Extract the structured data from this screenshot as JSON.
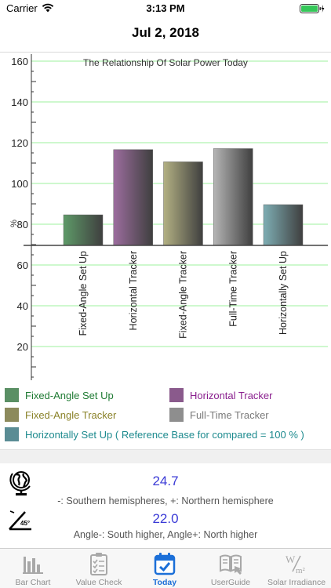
{
  "status_bar": {
    "carrier": "Carrier",
    "time": "3:13 PM"
  },
  "nav": {
    "title": "Jul 2, 2018"
  },
  "chart_data": {
    "type": "bar",
    "title": "The Relationship Of Solar Power Today",
    "ylabel": "%",
    "xlabel": "",
    "ylim": [
      0,
      160
    ],
    "yticks": [
      20,
      40,
      60,
      80,
      100,
      120,
      140,
      160
    ],
    "grid": true,
    "categories": [
      "Fixed-Angle Set Up",
      "Horizontal Tracker",
      "Fixed-Angle Tracker",
      "Full-Time Tracker",
      "Horizontally Set Up"
    ],
    "values": [
      95,
      127,
      121,
      127.5,
      100
    ],
    "colors": [
      "#5e9a68",
      "#9c6d9e",
      "#b3b183",
      "#b5b5b5",
      "#7eaeb4"
    ]
  },
  "legend": [
    {
      "label": "Fixed-Angle Set Up",
      "color": "#5a8f64",
      "text_color": "#1e7a32"
    },
    {
      "label": "Horizontal Tracker",
      "color": "#8a5a8c",
      "text_color": "#8a1f8e"
    },
    {
      "label": "Fixed-Angle Tracker",
      "color": "#8c8a5c",
      "text_color": "#8a8228"
    },
    {
      "label": "Full-Time Tracker",
      "color": "#8e8e8e",
      "text_color": "#7a7a7a"
    },
    {
      "label": "Horizontally Set Up ( Reference Base for compared = 100 % )",
      "color": "#5a8c94",
      "text_color": "#1d8a8e"
    }
  ],
  "latitude": {
    "value": "24.7",
    "note": "-: Southern hemispheres, +: Northern hemisphere",
    "icon": "globe-icon"
  },
  "angle": {
    "value": "22.0",
    "note": "Angle-: South higher, Angle+: North higher",
    "icon": "angle-icon",
    "icon_text": "45°"
  },
  "tabs": [
    {
      "label": "Bar Chart",
      "icon": "bar-chart-icon",
      "active": false
    },
    {
      "label": "Value Check",
      "icon": "checklist-icon",
      "active": false
    },
    {
      "label": "Today",
      "icon": "calendar-icon",
      "active": true
    },
    {
      "label": "UserGuide",
      "icon": "book-icon",
      "active": false
    },
    {
      "label": "Solar Irradiance",
      "icon": "irradiance-icon",
      "active": false
    }
  ],
  "irradiance_icon_text": {
    "w": "W",
    "m": "m²"
  },
  "accent_color": "#1b6fd8",
  "value_color": "#3a3ad6"
}
